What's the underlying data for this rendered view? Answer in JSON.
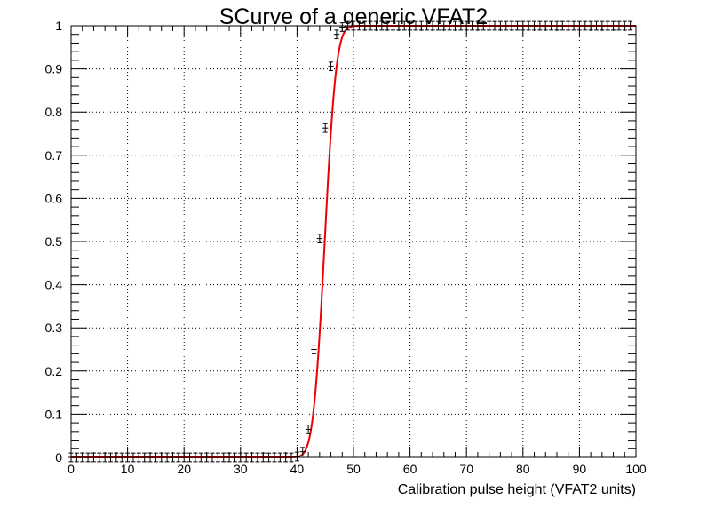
{
  "chart_data": {
    "type": "scatter",
    "title": "SCurve of a generic VFAT2",
    "xlabel": "Calibration pulse height (VFAT2 units)",
    "ylabel": "",
    "xlim": [
      0,
      100
    ],
    "ylim": [
      0,
      1
    ],
    "x_ticks": [
      "0",
      "10",
      "20",
      "30",
      "40",
      "50",
      "60",
      "70",
      "80",
      "90",
      "100"
    ],
    "y_ticks": [
      "0",
      "0.1",
      "0.2",
      "0.3",
      "0.4",
      "0.5",
      "0.6",
      "0.7",
      "0.8",
      "0.9",
      "1"
    ],
    "grid": true,
    "series": [
      {
        "kind": "points_with_error_bars",
        "color": "#000000",
        "x": [
          0,
          1,
          2,
          3,
          4,
          5,
          6,
          7,
          8,
          9,
          10,
          11,
          12,
          13,
          14,
          15,
          16,
          17,
          18,
          19,
          20,
          21,
          22,
          23,
          24,
          25,
          26,
          27,
          28,
          29,
          30,
          31,
          32,
          33,
          34,
          35,
          36,
          37,
          38,
          39,
          40,
          41,
          42,
          43,
          44,
          45,
          46,
          47,
          48,
          49,
          50,
          51,
          52,
          53,
          54,
          55,
          56,
          57,
          58,
          59,
          60,
          61,
          62,
          63,
          64,
          65,
          66,
          67,
          68,
          69,
          70,
          71,
          72,
          73,
          74,
          75,
          76,
          77,
          78,
          79,
          80,
          81,
          82,
          83,
          84,
          85,
          86,
          87,
          88,
          89,
          90,
          91,
          92,
          93,
          94,
          95,
          96,
          97,
          98,
          99
        ],
        "y": [
          0,
          0,
          0,
          0,
          0,
          0,
          0,
          0,
          0,
          0,
          0,
          0,
          0,
          0,
          0,
          0,
          0,
          0,
          0,
          0,
          0,
          0,
          0,
          0,
          0,
          0,
          0,
          0,
          0,
          0,
          0,
          0,
          0,
          0,
          0,
          0,
          0,
          0,
          0,
          0,
          0.002,
          0.013,
          0.065,
          0.25,
          0.507,
          0.763,
          0.906,
          0.98,
          0.997,
          1,
          1,
          1,
          1,
          1,
          1,
          1,
          1,
          1,
          1,
          1,
          1,
          1,
          1,
          1,
          1,
          1,
          1,
          1,
          1,
          1,
          1,
          1,
          1,
          1,
          1,
          1,
          1,
          1,
          1,
          1,
          1,
          1,
          1,
          1,
          1,
          1,
          1,
          1,
          1,
          1,
          1,
          1,
          1,
          1,
          1,
          1,
          1,
          1,
          1,
          1
        ],
        "y_err": 0.01,
        "x_err": 0.5
      },
      {
        "kind": "fit_curve",
        "color": "#ee0000",
        "function": "erf",
        "mean": 44.9,
        "sigma": 1.6
      }
    ]
  }
}
